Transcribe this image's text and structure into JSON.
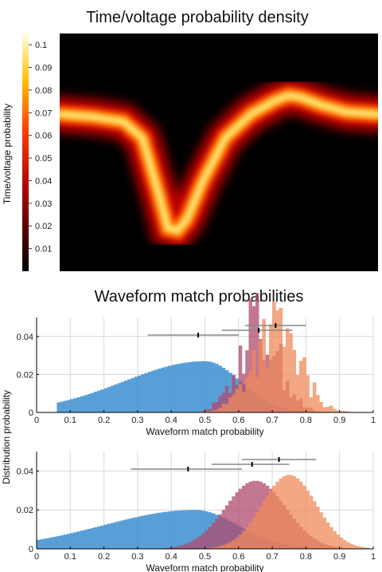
{
  "chart_data": [
    {
      "type": "heatmap",
      "title": "Time/voltage probability density",
      "colorbar": {
        "label": "Time/voltage probability",
        "ticks": [
          "0.01",
          "0.02",
          "0.03",
          "0.04",
          "0.05",
          "0.06",
          "0.07",
          "0.08",
          "0.09",
          "0.1"
        ],
        "range": [
          0,
          0.105
        ],
        "colormap": "hot"
      },
      "ridge_shape_x": [
        0,
        0.1,
        0.2,
        0.26,
        0.31,
        0.34,
        0.37,
        0.4,
        0.45,
        0.52,
        0.6,
        0.68,
        0.72,
        0.76,
        0.82,
        0.9,
        1.0
      ],
      "ridge_shape_y": [
        0.66,
        0.65,
        0.63,
        0.56,
        0.33,
        0.18,
        0.17,
        0.22,
        0.38,
        0.56,
        0.66,
        0.72,
        0.74,
        0.73,
        0.7,
        0.67,
        0.66
      ]
    },
    {
      "type": "bar",
      "section_title": "Waveform match probabilities",
      "xlabel": "Waveform match probability",
      "ylabel": "",
      "xlim": [
        0,
        1
      ],
      "ylim": [
        0,
        0.05
      ],
      "xticks": [
        "0",
        "0.1",
        "0.2",
        "0.3",
        "0.4",
        "0.5",
        "0.6",
        "0.7",
        "0.8",
        "0.9",
        "1"
      ],
      "yticks": [
        "0",
        "0.02",
        "0.04"
      ],
      "grid": true,
      "series": [
        {
          "color": "#3d8fd1",
          "mean": 0.48,
          "spread": 0.14,
          "center": 0.5,
          "skew": 1.2,
          "noisy": false
        },
        {
          "color": "#b04a6e",
          "mean": 0.66,
          "spread": 0.06,
          "center": 0.66,
          "skew": 0.0,
          "noisy": true
        },
        {
          "color": "#f08a5a",
          "mean": 0.71,
          "spread": 0.07,
          "center": 0.71,
          "skew": 0.0,
          "noisy": true
        }
      ],
      "error_bars": [
        {
          "center": 0.48,
          "low": 0.33,
          "high": 0.6
        },
        {
          "center": 0.66,
          "low": 0.55,
          "high": 0.76
        },
        {
          "center": 0.71,
          "low": 0.62,
          "high": 0.8
        }
      ]
    },
    {
      "type": "bar",
      "xlabel": "Waveform match probability",
      "ylabel": "Distribution probability",
      "xlim": [
        0,
        1
      ],
      "ylim": [
        0,
        0.05
      ],
      "xticks": [
        "0",
        "0.1",
        "0.2",
        "0.3",
        "0.4",
        "0.5",
        "0.6",
        "0.7",
        "0.8",
        "0.9",
        "1"
      ],
      "yticks": [
        "0",
        "0.02",
        "0.04"
      ],
      "grid": true,
      "series": [
        {
          "color": "#3d8fd1",
          "mean": 0.45,
          "spread": 0.17,
          "center": 0.47,
          "skew": 1.0,
          "noisy": false
        },
        {
          "color": "#b04a6e",
          "mean": 0.64,
          "spread": 0.09,
          "center": 0.65,
          "skew": 0.0,
          "noisy": false
        },
        {
          "color": "#f08a5a",
          "mean": 0.72,
          "spread": 0.08,
          "center": 0.75,
          "skew": 0.0,
          "noisy": false
        }
      ],
      "peaks": [
        0.02,
        0.035,
        0.038
      ],
      "error_bars": [
        {
          "center": 0.45,
          "low": 0.28,
          "high": 0.61
        },
        {
          "center": 0.64,
          "low": 0.52,
          "high": 0.75
        },
        {
          "center": 0.72,
          "low": 0.61,
          "high": 0.83
        }
      ]
    }
  ]
}
